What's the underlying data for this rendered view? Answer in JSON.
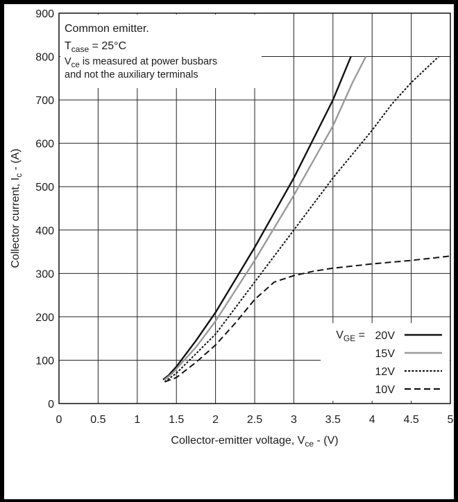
{
  "chart_data": {
    "type": "line",
    "xlabel_main": "Collector-emitter voltage, V",
    "xlabel_sub": "ce",
    "xlabel_tail": " - (V)",
    "ylabel_main": "Collector current, I",
    "ylabel_sub": "c",
    "ylabel_tail": "  - (A)",
    "xlim": [
      0,
      5
    ],
    "ylim": [
      0,
      900
    ],
    "xticks": [
      "0",
      "0.5",
      "1",
      "1.5",
      "2",
      "2.5",
      "3",
      "3.5",
      "4",
      "4.5",
      "5"
    ],
    "yticks": [
      "0",
      "100",
      "200",
      "300",
      "400",
      "500",
      "600",
      "700",
      "800",
      "900"
    ],
    "grid": true,
    "annotation": {
      "line1": "Common emitter.",
      "line2_main": "T",
      "line2_sub": "case",
      "line2_tail": " = 25°C",
      "line3_main": "V",
      "line3_sub": "ce",
      "line3_tail": " is measured at power busbars",
      "line4": "and not the auxiliary terminals"
    },
    "legend": {
      "placement": "bottom-right",
      "title_main": "V",
      "title_sub": "GE",
      "title_tail": " = "
    },
    "series": [
      {
        "name": "20V",
        "color": "#111111",
        "dash": "solid",
        "x": [
          1.33,
          1.4,
          1.5,
          1.75,
          2.0,
          2.25,
          2.5,
          2.75,
          3.0,
          3.25,
          3.5,
          3.73
        ],
        "y": [
          55,
          65,
          85,
          145,
          210,
          285,
          360,
          440,
          520,
          610,
          700,
          800
        ]
      },
      {
        "name": "15V",
        "color": "#9a9a9a",
        "dash": "solid",
        "x": [
          1.35,
          1.45,
          1.5,
          1.75,
          2.0,
          2.25,
          2.5,
          2.75,
          3.0,
          3.25,
          3.5,
          3.75,
          3.92
        ],
        "y": [
          55,
          70,
          80,
          130,
          190,
          260,
          330,
          405,
          480,
          560,
          640,
          740,
          800
        ]
      },
      {
        "name": "12V",
        "color": "#111111",
        "dash": "dotted",
        "x": [
          1.35,
          1.5,
          1.75,
          2.0,
          2.25,
          2.5,
          2.75,
          3.0,
          3.25,
          3.5,
          3.75,
          4.0,
          4.25,
          4.5,
          4.85
        ],
        "y": [
          50,
          70,
          115,
          160,
          220,
          280,
          340,
          400,
          460,
          520,
          575,
          630,
          690,
          740,
          800
        ]
      },
      {
        "name": "10V",
        "color": "#111111",
        "dash": "dashed",
        "x": [
          1.35,
          1.5,
          1.75,
          2.0,
          2.25,
          2.5,
          2.75,
          3.0,
          3.25,
          3.5,
          4.0,
          4.5,
          5.0
        ],
        "y": [
          50,
          60,
          95,
          135,
          185,
          240,
          280,
          295,
          305,
          312,
          322,
          330,
          340
        ]
      }
    ]
  }
}
